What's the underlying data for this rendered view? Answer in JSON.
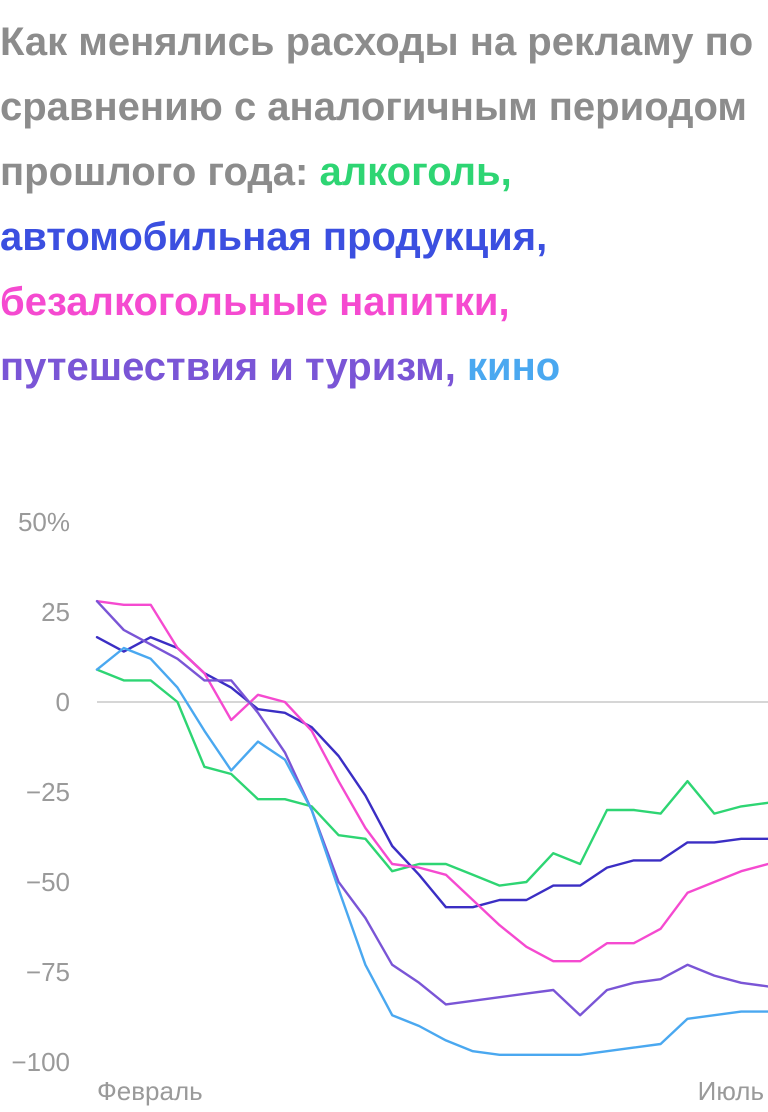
{
  "title": {
    "lead": "Как менялись расходы на рекламу по сравнению с аналогичным периодом прошлого года: ",
    "parts": [
      {
        "text": "алкоголь",
        "sep": ", ",
        "color": "#2ed573"
      },
      {
        "text": "автомобильная продукция",
        "sep": ", ",
        "color": "#3b4fe0"
      },
      {
        "text": "безалкогольные напитки",
        "sep": ", ",
        "color": "#f54ad0"
      },
      {
        "text": "путешествия и туризм",
        "sep": ", ",
        "color": "#7a55d6"
      },
      {
        "text": "кино",
        "sep": "",
        "color": "#4aa8f0"
      }
    ]
  },
  "chart_data": {
    "type": "line",
    "ylim": [
      -100,
      50
    ],
    "yticks": [
      50,
      25,
      0,
      -25,
      -50,
      -75,
      -100
    ],
    "ytick_labels": [
      "50%",
      "25",
      "0",
      "−25",
      "−50",
      "−75",
      "−100"
    ],
    "x": [
      1,
      2,
      3,
      4,
      5,
      6,
      7,
      8,
      9,
      10,
      11,
      12,
      13,
      14,
      15,
      16,
      17,
      18,
      19,
      20,
      21,
      22,
      23,
      24,
      25,
      26
    ],
    "xticks": [
      {
        "x": 1,
        "label": "Февраль"
      },
      {
        "x": 26,
        "label": "Июль"
      }
    ],
    "zero_line": true,
    "series": [
      {
        "name": "алкоголь",
        "color": "#2ed573",
        "values": [
          9,
          6,
          6,
          0,
          -18,
          -20,
          -27,
          -27,
          -29,
          -37,
          -38,
          -47,
          -45,
          -45,
          -48,
          -51,
          -50,
          -42,
          -45,
          -30,
          -30,
          -31,
          -22,
          -31,
          -29,
          -28
        ]
      },
      {
        "name": "автомобильная продукция",
        "color": "#3b2ec4",
        "values": [
          18,
          14,
          18,
          15,
          8,
          4,
          -2,
          -3,
          -7,
          -15,
          -26,
          -40,
          -48,
          -57,
          -57,
          -55,
          -55,
          -51,
          -51,
          -46,
          -44,
          -44,
          -39,
          -39,
          -38,
          -38
        ]
      },
      {
        "name": "безалкогольные напитки",
        "color": "#f54ad0",
        "values": [
          28,
          27,
          27,
          15,
          8,
          -5,
          2,
          0,
          -8,
          -22,
          -35,
          -45,
          -46,
          -48,
          -55,
          -62,
          -68,
          -72,
          -72,
          -67,
          -67,
          -63,
          -53,
          -50,
          -47,
          -45
        ]
      },
      {
        "name": "путешествия и туризм",
        "color": "#7a55d6",
        "values": [
          28,
          20,
          16,
          12,
          6,
          6,
          -3,
          -14,
          -30,
          -50,
          -60,
          -73,
          -78,
          -84,
          -83,
          -82,
          -81,
          -80,
          -87,
          -80,
          -78,
          -77,
          -73,
          -76,
          -78,
          -79
        ]
      },
      {
        "name": "кино",
        "color": "#4aa8f0",
        "values": [
          9,
          15,
          12,
          4,
          -8,
          -19,
          -11,
          -16,
          -30,
          -52,
          -73,
          -87,
          -90,
          -94,
          -97,
          -98,
          -98,
          -98,
          -98,
          -97,
          -96,
          -95,
          -88,
          -87,
          -86,
          -86
        ]
      }
    ]
  }
}
